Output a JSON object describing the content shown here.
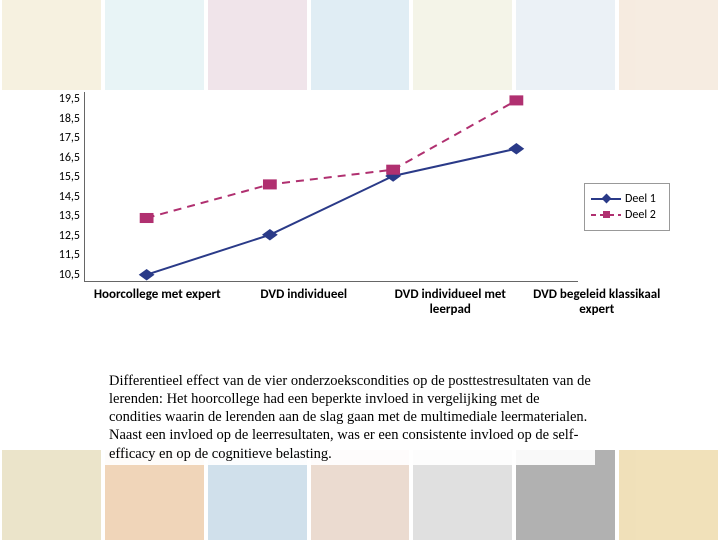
{
  "background": {
    "top_colors": [
      "#e8d9a8",
      "#bfe0e6",
      "#d6b3c4",
      "#a7cde0",
      "#e0e0c0",
      "#c8d9e6",
      "#e6c8a8"
    ],
    "bottom_colors": [
      "#c7b56a",
      "#d68a3a",
      "#7aa8c7",
      "#c79a7a",
      "#a8a8a8",
      "#222",
      "#d6a83a"
    ]
  },
  "chart": {
    "type": "line",
    "ylim": [
      10.5,
      19.5
    ],
    "ytick_step": 1.0,
    "yticks": [
      "19,5",
      "18,5",
      "17,5",
      "16,5",
      "15,5",
      "14,5",
      "13,5",
      "12,5",
      "11,5",
      "10,5"
    ],
    "categories": [
      "Hoorcollege met expert",
      "DVD individueel",
      "DVD individueel met leerpad",
      "DVD begeleid klassikaal expert"
    ],
    "series": [
      {
        "name": "Deel 1",
        "values": [
          10.8,
          12.7,
          15.5,
          16.8
        ],
        "color": "#2a3a88",
        "marker": "diamond",
        "marker_size": 7,
        "line_width": 2,
        "dash": "solid"
      },
      {
        "name": "Deel 2",
        "values": [
          13.5,
          15.1,
          15.8,
          19.1
        ],
        "color": "#b03070",
        "marker": "square",
        "marker_size": 7,
        "line_width": 2,
        "dash": "8 6"
      }
    ],
    "axis_color": "#666666",
    "grid": false,
    "label_fontsize": 13,
    "tick_fontsize": 12,
    "background_color": "#ffffff"
  },
  "caption": {
    "text": "Differentieel effect van de vier onderzoekscondities op de posttestresultaten van de lerenden: Het hoorcollege had een beperkte invloed in vergelijking met de condities waarin de lerenden aan de slag gaan met de multimediale leermaterialen. Naast een invloed op de leerresultaten, was er een consistente invloed op de self-efficacy en op de cognitieve belasting."
  }
}
